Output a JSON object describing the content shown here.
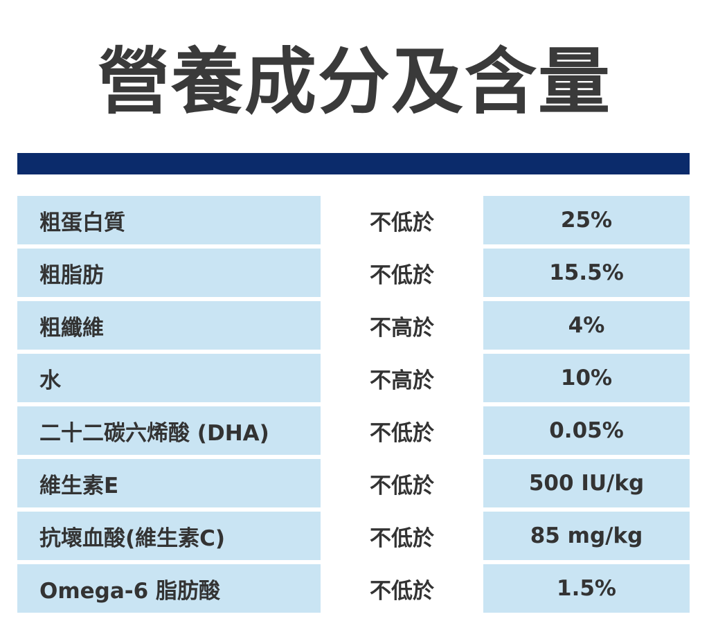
{
  "title": "營養成分及含量",
  "colors": {
    "accent_bar": "#0b2b6b",
    "cell_background": "#c9e4f3",
    "text": "#333333"
  },
  "rows": [
    {
      "name": "粗蛋白質",
      "condition": "不低於",
      "value": "25%"
    },
    {
      "name": "粗脂肪",
      "condition": "不低於",
      "value": "15.5%"
    },
    {
      "name": "粗纖維",
      "condition": "不高於",
      "value": "4%"
    },
    {
      "name": "水",
      "condition": "不高於",
      "value": "10%"
    },
    {
      "name": "二十二碳六烯酸 (DHA)",
      "condition": "不低於",
      "value": "0.05%"
    },
    {
      "name": "維生素E",
      "condition": "不低於",
      "value": "500 IU/kg"
    },
    {
      "name": "抗壞血酸(維生素C)",
      "condition": "不低於",
      "value": "85 mg/kg"
    },
    {
      "name": "Omega-6 脂肪酸",
      "condition": "不低於",
      "value": "1.5%"
    }
  ]
}
